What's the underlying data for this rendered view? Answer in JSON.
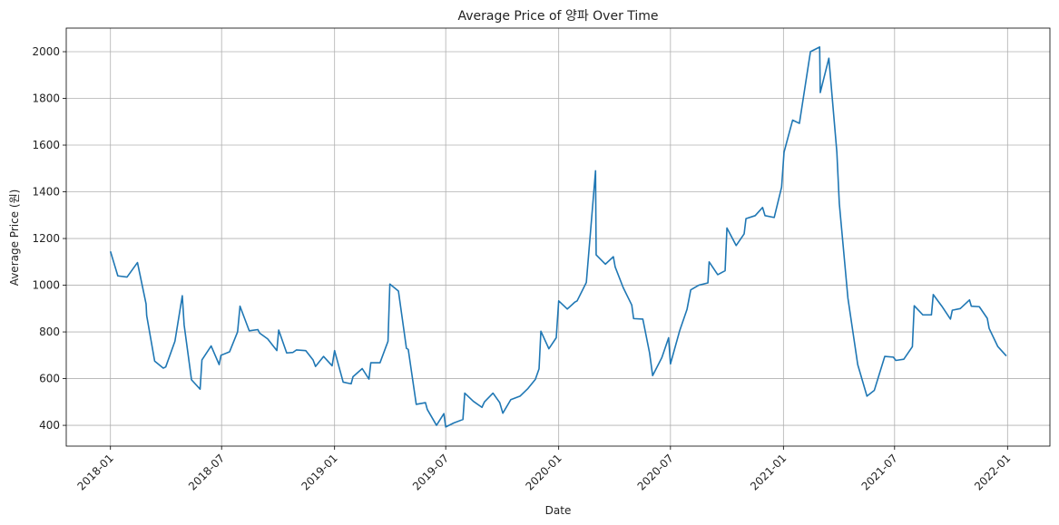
{
  "chart_data": {
    "type": "line",
    "title": "Average Price of 양파 Over Time",
    "xlabel": "Date",
    "ylabel": "Average Price (원)",
    "x": [
      "2018-01-01",
      "2018-01-13",
      "2018-01-28",
      "2018-02-14",
      "2018-02-28",
      "2018-03-01",
      "2018-03-14",
      "2018-03-28",
      "2018-04-01",
      "2018-04-16",
      "2018-04-28",
      "2018-05-01",
      "2018-05-13",
      "2018-05-27",
      "2018-05-30",
      "2018-06-14",
      "2018-06-27",
      "2018-06-30",
      "2018-07-14",
      "2018-07-27",
      "2018-07-31",
      "2018-08-15",
      "2018-08-29",
      "2018-09-01",
      "2018-09-14",
      "2018-09-29",
      "2018-10-02",
      "2018-10-15",
      "2018-10-25",
      "2018-10-31",
      "2018-11-15",
      "2018-11-27",
      "2018-12-01",
      "2018-12-14",
      "2018-12-28",
      "2019-01-01",
      "2019-01-15",
      "2019-01-28",
      "2019-01-31",
      "2019-02-15",
      "2019-02-26",
      "2019-03-01",
      "2019-03-16",
      "2019-03-29",
      "2019-04-01",
      "2019-04-15",
      "2019-04-28",
      "2019-05-01",
      "2019-05-14",
      "2019-05-29",
      "2019-06-01",
      "2019-06-16",
      "2019-06-28",
      "2019-07-01",
      "2019-07-14",
      "2019-07-29",
      "2019-08-01",
      "2019-08-15",
      "2019-08-29",
      "2019-09-02",
      "2019-09-16",
      "2019-09-27",
      "2019-10-02",
      "2019-10-15",
      "2019-10-30",
      "2019-11-12",
      "2019-11-24",
      "2019-11-30",
      "2019-12-03",
      "2019-12-16",
      "2019-12-28",
      "2020-01-01",
      "2020-01-15",
      "2020-01-27",
      "2020-01-31",
      "2020-02-15",
      "2020-03-01",
      "2020-03-02",
      "2020-03-17",
      "2020-03-30",
      "2020-04-02",
      "2020-04-15",
      "2020-04-29",
      "2020-05-02",
      "2020-05-17",
      "2020-05-28",
      "2020-06-02",
      "2020-06-17",
      "2020-06-28",
      "2020-07-01",
      "2020-07-16",
      "2020-07-28",
      "2020-08-03",
      "2020-08-16",
      "2020-08-31",
      "2020-09-02",
      "2020-09-16",
      "2020-09-28",
      "2020-10-01",
      "2020-10-16",
      "2020-10-29",
      "2020-11-01",
      "2020-11-16",
      "2020-11-28",
      "2020-12-02",
      "2020-12-17",
      "2020-12-29",
      "2021-01-02",
      "2021-01-16",
      "2021-01-27",
      "2021-02-14",
      "2021-03-01",
      "2021-03-02",
      "2021-03-16",
      "2021-03-29",
      "2021-04-02",
      "2021-04-16",
      "2021-05-02",
      "2021-05-17",
      "2021-05-29",
      "2021-06-15",
      "2021-06-29",
      "2021-07-03",
      "2021-07-16",
      "2021-07-30",
      "2021-08-02",
      "2021-08-16",
      "2021-08-30",
      "2021-09-02",
      "2021-09-16",
      "2021-09-30",
      "2021-10-03",
      "2021-10-16",
      "2021-10-31",
      "2021-11-03",
      "2021-11-16",
      "2021-11-29",
      "2021-12-02",
      "2021-12-16",
      "2021-12-30"
    ],
    "series": [
      {
        "name": "Average Price",
        "color": "#1f77b4",
        "values": [
          1145,
          1040,
          1035,
          1097,
          920,
          870,
          675,
          645,
          650,
          760,
          955,
          830,
          595,
          555,
          680,
          740,
          660,
          700,
          715,
          800,
          910,
          805,
          810,
          795,
          770,
          720,
          808,
          710,
          712,
          723,
          720,
          680,
          652,
          695,
          655,
          720,
          585,
          578,
          608,
          643,
          598,
          668,
          668,
          760,
          1005,
          975,
          730,
          725,
          490,
          497,
          468,
          400,
          450,
          393,
          410,
          425,
          538,
          503,
          477,
          500,
          538,
          497,
          452,
          510,
          525,
          558,
          597,
          642,
          803,
          728,
          775,
          933,
          898,
          927,
          933,
          1012,
          1490,
          1130,
          1090,
          1122,
          1078,
          990,
          915,
          857,
          855,
          710,
          613,
          690,
          775,
          663,
          805,
          897,
          980,
          1000,
          1010,
          1100,
          1045,
          1062,
          1245,
          1170,
          1220,
          1285,
          1298,
          1333,
          1298,
          1290,
          1420,
          1570,
          1707,
          1693,
          2000,
          2020,
          1825,
          1972,
          1570,
          1350,
          945,
          660,
          525,
          550,
          695,
          692,
          678,
          683,
          737,
          912,
          873,
          873,
          960,
          910,
          855,
          893,
          900,
          937,
          910,
          908,
          858,
          815,
          738,
          697
        ]
      }
    ],
    "xlim": [
      "2017-10-21",
      "2022-03-11"
    ],
    "xticks": [
      "2018-01",
      "2018-07",
      "2019-01",
      "2019-07",
      "2020-01",
      "2020-07",
      "2021-01",
      "2021-07",
      "2022-01"
    ],
    "ylim": [
      311,
      2101
    ],
    "yticks": [
      400,
      600,
      800,
      1000,
      1200,
      1400,
      1600,
      1800,
      2000
    ],
    "grid": true
  }
}
